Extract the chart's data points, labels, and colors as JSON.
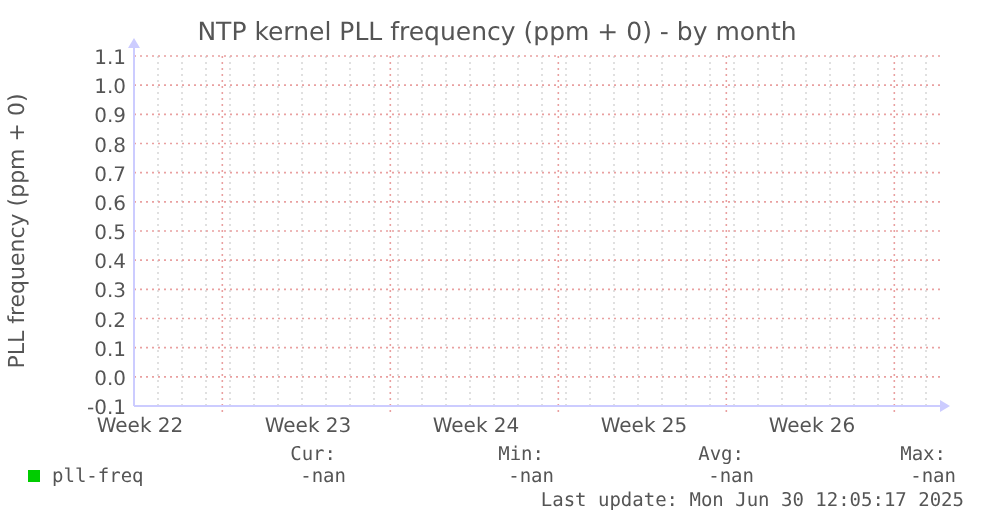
{
  "chart_data": {
    "type": "line",
    "title": "NTP kernel PLL frequency (ppm + 0) - by month",
    "ylabel": "PLL frequency (ppm + 0)",
    "categories": [
      "Week 22",
      "Week 23",
      "Week 24",
      "Week 25",
      "Week 26"
    ],
    "series": [
      {
        "name": "pll-freq",
        "color": "#00cc00",
        "values": [
          null,
          null,
          null,
          null,
          null
        ]
      }
    ],
    "ylim": [
      -0.1,
      1.1
    ],
    "yticks": [
      {
        "value": -0.1,
        "label": "-0.1"
      },
      {
        "value": 0,
        "label": "0.0"
      },
      {
        "value": 0.1,
        "label": "0.1"
      },
      {
        "value": 0.2,
        "label": "0.2"
      },
      {
        "value": 0.3,
        "label": "0.3"
      },
      {
        "value": 0.4,
        "label": "0.4"
      },
      {
        "value": 0.5,
        "label": "0.5"
      },
      {
        "value": 0.6,
        "label": "0.6"
      },
      {
        "value": 0.7,
        "label": "0.7"
      },
      {
        "value": 0.8,
        "label": "0.8"
      },
      {
        "value": 0.9,
        "label": "0.9"
      },
      {
        "value": 1,
        "label": "1.0"
      },
      {
        "value": 1.1,
        "label": "1.1"
      }
    ],
    "grid": true,
    "legend": "bottom left",
    "annotations": [
      "Cur:",
      "Min:",
      "Avg:",
      "Max:",
      "-nan",
      "-nan",
      "-nan",
      "-nan",
      "Last update: Mon Jun 30 12:05:17 2025"
    ]
  }
}
